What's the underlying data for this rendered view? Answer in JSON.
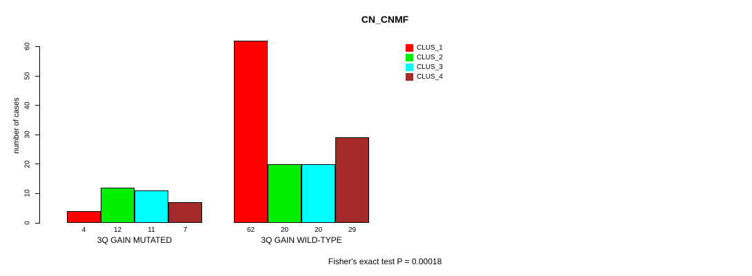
{
  "chart_data": {
    "type": "bar",
    "title": "CN_CNMF",
    "ylabel": "number of cases",
    "xlabel": "",
    "ylim": [
      0,
      62
    ],
    "yticks": [
      0,
      10,
      20,
      30,
      40,
      50,
      60
    ],
    "grid": false,
    "legend_position": "top-right",
    "categories": [
      "3Q GAIN MUTATED",
      "3Q GAIN WILD-TYPE"
    ],
    "series": [
      {
        "name": "CLUS_1",
        "color": "#FF0000",
        "values": [
          4,
          62
        ]
      },
      {
        "name": "CLUS_2",
        "color": "#00EE00",
        "values": [
          12,
          20
        ]
      },
      {
        "name": "CLUS_3",
        "color": "#00FFFF",
        "values": [
          11,
          20
        ]
      },
      {
        "name": "CLUS_4",
        "color": "#A52A2A",
        "values": [
          7,
          29
        ]
      }
    ],
    "annotation": "Fisher's exact test P = 0.00018"
  },
  "colors": {
    "axis": "#000000",
    "bar_border": "#000000",
    "background": "#FFFFFF"
  }
}
